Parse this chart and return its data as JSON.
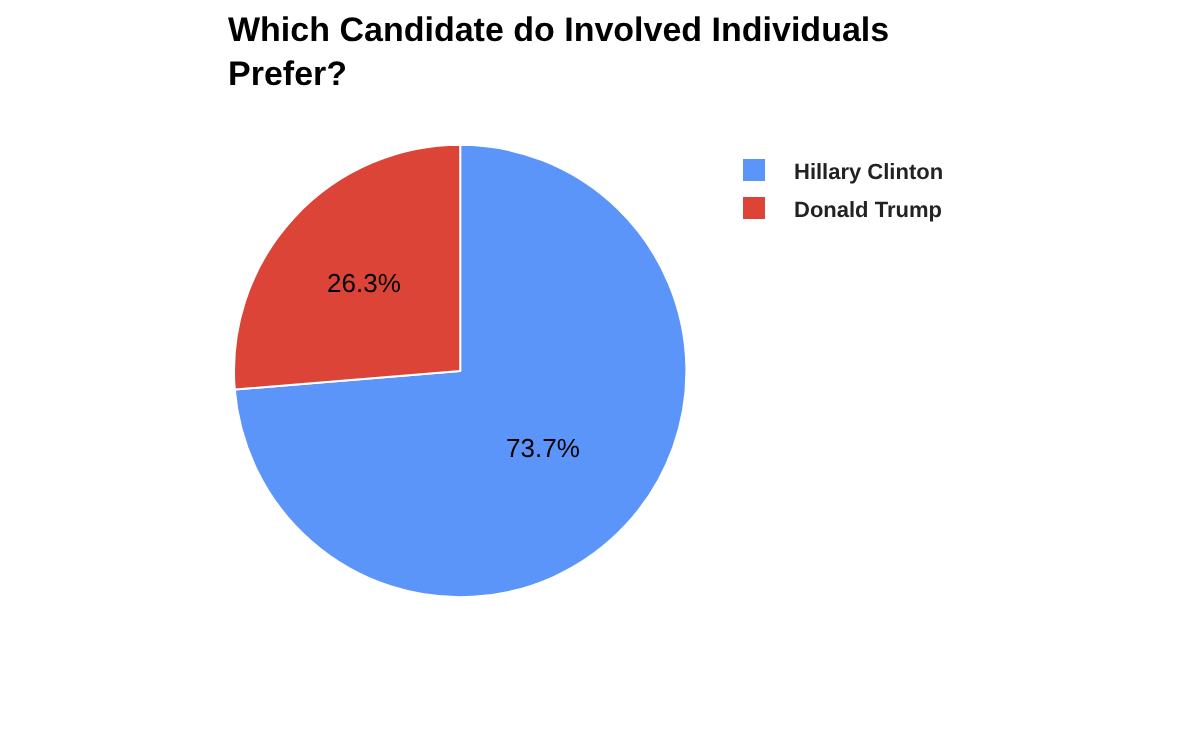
{
  "chart_data": {
    "type": "pie",
    "title": "Which Candidate do Involved Individuals Prefer?",
    "categories": [
      "Hillary Clinton",
      "Donald Trump"
    ],
    "values": [
      73.7,
      26.3
    ],
    "colors": [
      "#5b95f9",
      "#db4437"
    ],
    "value_labels": [
      "73.7%",
      "26.3%"
    ],
    "legend": "top right"
  }
}
